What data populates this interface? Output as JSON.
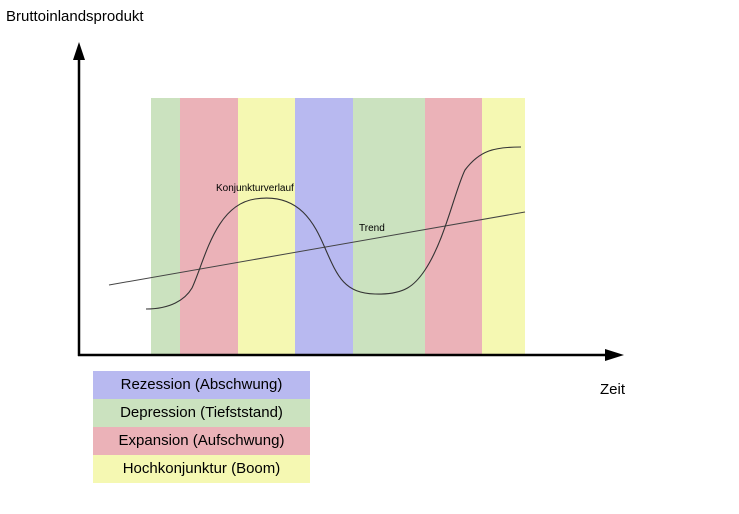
{
  "title": "",
  "y_axis_label": "Bruttoinlandsprodukt",
  "x_axis_label": "Zeit",
  "curve_label": "Konjunkturverlauf",
  "trend_label": "Trend",
  "phases": [
    {
      "key": "depression",
      "color": "#cbe2bf"
    },
    {
      "key": "expansion",
      "color": "#ebb2b8"
    },
    {
      "key": "boom",
      "color": "#f5f8b2"
    },
    {
      "key": "rezession",
      "color": "#b8b9f0"
    },
    {
      "key": "depression",
      "color": "#cbe2bf"
    },
    {
      "key": "expansion",
      "color": "#ebb2b8"
    },
    {
      "key": "boom",
      "color": "#f5f8b2"
    }
  ],
  "legend": [
    {
      "label": "Rezession (Abschwung)",
      "color": "#b8b9f0"
    },
    {
      "label": "Depression (Tiefststand)",
      "color": "#cbe2bf"
    },
    {
      "label": "Expansion (Aufschwung)",
      "color": "#ebb2b8"
    },
    {
      "label": "Hochkonjunktur (Boom)",
      "color": "#f5f8b2"
    }
  ]
}
